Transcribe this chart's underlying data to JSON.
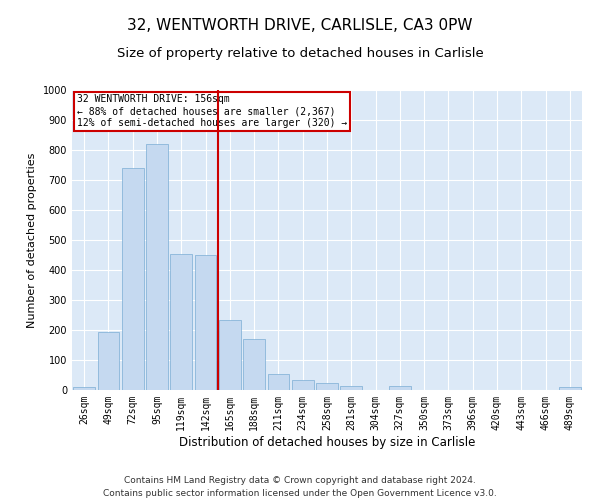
{
  "title": "32, WENTWORTH DRIVE, CARLISLE, CA3 0PW",
  "subtitle": "Size of property relative to detached houses in Carlisle",
  "xlabel": "Distribution of detached houses by size in Carlisle",
  "ylabel": "Number of detached properties",
  "categories": [
    "26sqm",
    "49sqm",
    "72sqm",
    "95sqm",
    "119sqm",
    "142sqm",
    "165sqm",
    "188sqm",
    "211sqm",
    "234sqm",
    "258sqm",
    "281sqm",
    "304sqm",
    "327sqm",
    "350sqm",
    "373sqm",
    "396sqm",
    "420sqm",
    "443sqm",
    "466sqm",
    "489sqm"
  ],
  "values": [
    10,
    195,
    740,
    820,
    455,
    450,
    235,
    170,
    55,
    35,
    25,
    15,
    0,
    15,
    0,
    0,
    0,
    0,
    0,
    0,
    10
  ],
  "bar_color": "#c5d9f0",
  "bar_edge_color": "#7badd4",
  "vline_x": 6,
  "vline_color": "#cc0000",
  "annotation_text": "32 WENTWORTH DRIVE: 156sqm\n← 88% of detached houses are smaller (2,367)\n12% of semi-detached houses are larger (320) →",
  "annotation_box_color": "#ffffff",
  "annotation_box_edge_color": "#cc0000",
  "ylim": [
    0,
    1000
  ],
  "yticks": [
    0,
    100,
    200,
    300,
    400,
    500,
    600,
    700,
    800,
    900,
    1000
  ],
  "background_color": "#dce9f7",
  "grid_color": "#ffffff",
  "footer_line1": "Contains HM Land Registry data © Crown copyright and database right 2024.",
  "footer_line2": "Contains public sector information licensed under the Open Government Licence v3.0.",
  "title_fontsize": 11,
  "subtitle_fontsize": 9.5,
  "xlabel_fontsize": 8.5,
  "ylabel_fontsize": 8,
  "tick_fontsize": 7,
  "footer_fontsize": 6.5
}
